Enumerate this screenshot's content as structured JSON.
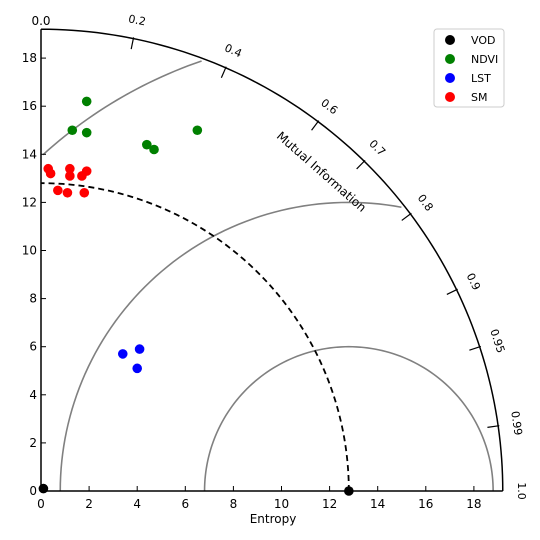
{
  "chart_data": {
    "type": "scatter",
    "xlabel": "Entropy",
    "arc_label": "Mutual Information",
    "xlim": [
      0,
      19.2
    ],
    "ylim": [
      0,
      19.2
    ],
    "x_ticks": [
      0,
      2,
      4,
      6,
      8,
      10,
      12,
      14,
      16,
      18
    ],
    "y_ticks": [
      0,
      2,
      4,
      6,
      8,
      10,
      12,
      14,
      16,
      18
    ],
    "angular_ticks": [
      {
        "value": 0.2,
        "label": "0.2"
      },
      {
        "value": 0.4,
        "label": "0.4"
      },
      {
        "value": 0.6,
        "label": "0.6"
      },
      {
        "value": 0.7,
        "label": "0.7"
      },
      {
        "value": 0.8,
        "label": "0.8"
      },
      {
        "value": 0.9,
        "label": "0.9"
      },
      {
        "value": 0.95,
        "label": "0.95"
      },
      {
        "value": 0.99,
        "label": "0.99"
      },
      {
        "value": 1.0,
        "label": "1.0"
      }
    ],
    "y_top_label": "0.0",
    "reference_radius": 12.8,
    "centered_arcs": [
      6.0,
      12.0
    ],
    "origin_arcs": [
      19.2
    ],
    "series": [
      {
        "name": "VOD",
        "color": "#000000",
        "points": [
          [
            0.1,
            0.1
          ],
          [
            12.8,
            0.0
          ]
        ]
      },
      {
        "name": "NDVI",
        "color": "#008000",
        "points": [
          [
            1.9,
            16.2
          ],
          [
            1.3,
            15.0
          ],
          [
            1.9,
            14.9
          ],
          [
            6.5,
            15.0
          ],
          [
            4.4,
            14.4
          ],
          [
            4.7,
            14.2
          ]
        ]
      },
      {
        "name": "LST",
        "color": "#0000ff",
        "points": [
          [
            3.4,
            5.7
          ],
          [
            4.1,
            5.9
          ],
          [
            4.0,
            5.1
          ]
        ]
      },
      {
        "name": "SM",
        "color": "#ff0000",
        "points": [
          [
            0.3,
            13.4
          ],
          [
            0.4,
            13.2
          ],
          [
            1.2,
            13.4
          ],
          [
            1.9,
            13.3
          ],
          [
            1.2,
            13.1
          ],
          [
            1.7,
            13.1
          ],
          [
            0.7,
            12.5
          ],
          [
            1.1,
            12.4
          ],
          [
            1.8,
            12.4
          ]
        ]
      }
    ]
  }
}
